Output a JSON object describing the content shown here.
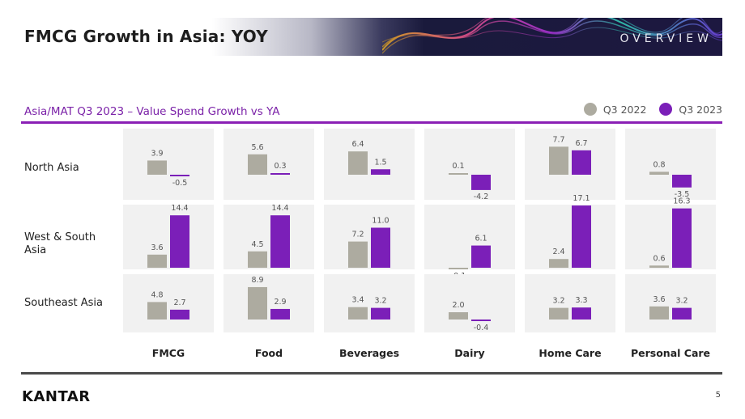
{
  "header": {
    "title": "FMCG Growth in Asia: YOY",
    "section_tag": "OVERVIEW"
  },
  "subtitle": "Asia/MAT Q3 2023 – Value Spend Growth vs YA",
  "legend": [
    {
      "label": "Q3 2022",
      "color": "#adaba0"
    },
    {
      "label": "Q3 2023",
      "color": "#7b1fb8"
    }
  ],
  "chart_data": {
    "type": "bar",
    "title": "Asia/MAT Q3 2023 – Value Spend Growth vs YA",
    "categories": [
      "FMCG",
      "Food",
      "Beverages",
      "Dairy",
      "Home Care",
      "Personal Care"
    ],
    "regions": [
      "North Asia",
      "West & South Asia",
      "Southeast Asia"
    ],
    "series": [
      {
        "name": "Q3 2022",
        "color": "#adaba0",
        "values": [
          [
            3.9,
            5.6,
            6.4,
            0.1,
            7.7,
            0.8
          ],
          [
            3.6,
            4.5,
            7.2,
            -0.1,
            2.4,
            0.6
          ],
          [
            4.8,
            8.9,
            3.4,
            2.0,
            3.2,
            3.6
          ]
        ],
        "labels": [
          [
            "3.9",
            "5.6",
            "6.4",
            "0.1",
            "7.7",
            "0.8"
          ],
          [
            "3.6",
            "4.5",
            "7.2",
            "-0.1",
            "2.4",
            "0.6"
          ],
          [
            "4.8",
            "8.9",
            "3.4",
            "2.0",
            "3.2",
            "3.6"
          ]
        ]
      },
      {
        "name": "Q3 2023",
        "color": "#7b1fb8",
        "values": [
          [
            -0.5,
            0.3,
            1.5,
            -4.2,
            6.7,
            -3.5
          ],
          [
            14.4,
            14.4,
            11.0,
            6.1,
            17.1,
            16.3
          ],
          [
            2.7,
            2.9,
            3.2,
            -0.4,
            3.3,
            3.2
          ]
        ],
        "labels": [
          [
            "-0.5",
            "0.3",
            "1.5",
            "-4.2",
            "6.7",
            "-3.5"
          ],
          [
            "14.4",
            "14.4",
            "11.0",
            "6.1",
            "17.1",
            "16.3"
          ],
          [
            "2.7",
            "2.9",
            "3.2",
            "-0.4",
            "3.3",
            "3.2"
          ]
        ]
      }
    ]
  },
  "footer": {
    "logo": "KANTAR",
    "page_number": "5"
  }
}
